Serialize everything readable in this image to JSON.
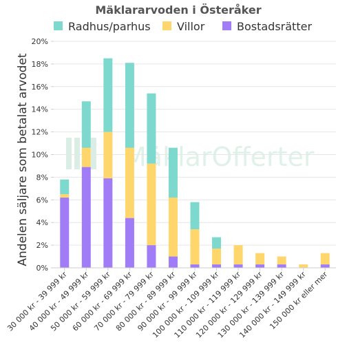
{
  "chart_data": {
    "type": "bar",
    "stacked": true,
    "title": "Mäklararvoden i Österåker",
    "xlabel": "",
    "ylabel": "Andelen säljare som betalat arvodet",
    "ylim": [
      0,
      20
    ],
    "y_unit": "%",
    "y_ticks": [
      "0%",
      "2%",
      "4%",
      "6%",
      "8%",
      "10%",
      "12%",
      "14%",
      "16%",
      "18%",
      "20%"
    ],
    "grid": "horizontal",
    "legend_position": "top",
    "categories": [
      "30 000 kr - 39 999 kr",
      "40 000 kr - 49 999 kr",
      "50 000 kr - 59 999 kr",
      "60 000 kr - 69 999 kr",
      "70 000 kr - 79 999 kr",
      "80 000 kr - 89 999 kr",
      "90 000 kr - 99 999 kr",
      "100 000 kr - 109 999 kr",
      "110 000 kr - 119 999 kr",
      "120 000 kr - 129 999 kr",
      "130 000 kr - 139 999 kr",
      "140 000 kr - 149 999 kr",
      "150 000 kr eller mer"
    ],
    "series": [
      {
        "name": "Bostadsrätter",
        "color": "#a07cf6",
        "values": [
          6.2,
          8.9,
          7.9,
          4.4,
          2.0,
          1.0,
          0.3,
          0.3,
          0.3,
          0.3,
          0.3,
          0.0,
          0.3
        ]
      },
      {
        "name": "Villor",
        "color": "#fed66b",
        "values": [
          0.3,
          1.7,
          4.1,
          6.2,
          7.2,
          5.2,
          3.1,
          1.4,
          1.7,
          1.0,
          0.7,
          0.3,
          1.0
        ]
      },
      {
        "name": "Radhus/parhus",
        "color": "#7dd8ce",
        "values": [
          1.3,
          4.1,
          6.5,
          7.5,
          6.2,
          4.4,
          2.4,
          1.0,
          0.0,
          0.0,
          0.0,
          0.0,
          0.0
        ]
      }
    ],
    "legend_order": [
      "Radhus/parhus",
      "Villor",
      "Bostadsrätter"
    ]
  },
  "watermark": {
    "text": "MäklarOfferter",
    "icon": "house-logo-icon"
  }
}
